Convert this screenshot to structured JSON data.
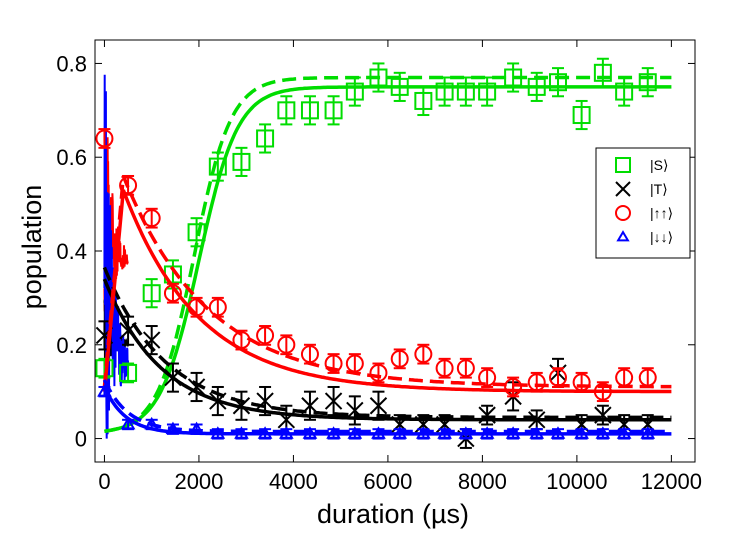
{
  "chart_data": {
    "type": "scatter",
    "title": "",
    "xlabel": "duration (µs)",
    "ylabel": "population",
    "xlim": [
      -200,
      12500
    ],
    "ylim": [
      -0.05,
      0.85
    ],
    "xticks": [
      0,
      2000,
      4000,
      6000,
      8000,
      10000,
      12000
    ],
    "yticks": [
      0,
      0.2,
      0.4,
      0.6,
      0.8
    ],
    "xtick_labels": [
      "0",
      "2000",
      "4000",
      "6000",
      "8000",
      "10000",
      "12000"
    ],
    "ytick_labels": [
      "0",
      "0.2",
      "0.4",
      "0.6",
      "0.8"
    ],
    "legend_position": "right",
    "series": [
      {
        "name": "|S⟩",
        "color": "#00dd00",
        "marker": "square",
        "x": [
          0,
          500,
          1000,
          1450,
          1950,
          2400,
          2900,
          3400,
          3850,
          4350,
          4850,
          5300,
          5800,
          6250,
          6750,
          7200,
          7650,
          8100,
          8650,
          9150,
          9600,
          10100,
          10550,
          11000,
          11500
        ],
        "y": [
          0.15,
          0.14,
          0.31,
          0.35,
          0.44,
          0.58,
          0.59,
          0.64,
          0.7,
          0.7,
          0.7,
          0.74,
          0.77,
          0.75,
          0.72,
          0.74,
          0.74,
          0.74,
          0.77,
          0.75,
          0.76,
          0.69,
          0.78,
          0.74,
          0.76
        ],
        "err": [
          0.02,
          0.02,
          0.03,
          0.03,
          0.03,
          0.03,
          0.03,
          0.03,
          0.03,
          0.03,
          0.03,
          0.03,
          0.03,
          0.03,
          0.03,
          0.03,
          0.03,
          0.03,
          0.03,
          0.03,
          0.03,
          0.03,
          0.03,
          0.03,
          0.03
        ],
        "fit_solid": {
          "a": 0.01,
          "b": 0.75,
          "t0": 2000,
          "w": 900,
          "mode": "logistic"
        },
        "fit_dashed": {
          "a": 0.01,
          "b": 0.77,
          "t0": 1900,
          "w": 850,
          "mode": "logistic"
        }
      },
      {
        "name": "|T⟩",
        "color": "#000000",
        "marker": "x",
        "x": [
          0,
          500,
          1000,
          1450,
          1950,
          2400,
          2900,
          3400,
          3850,
          4350,
          4850,
          5300,
          5800,
          6250,
          6750,
          7200,
          7650,
          8100,
          8650,
          9150,
          9600,
          10100,
          10550,
          11000,
          11500
        ],
        "y": [
          0.22,
          0.23,
          0.21,
          0.13,
          0.11,
          0.08,
          0.07,
          0.08,
          0.04,
          0.07,
          0.08,
          0.06,
          0.07,
          0.03,
          0.03,
          0.03,
          0.0,
          0.05,
          0.09,
          0.04,
          0.14,
          0.03,
          0.05,
          0.03,
          0.03
        ],
        "err": [
          0.03,
          0.03,
          0.03,
          0.03,
          0.03,
          0.03,
          0.03,
          0.03,
          0.03,
          0.03,
          0.03,
          0.03,
          0.03,
          0.02,
          0.02,
          0.02,
          0.02,
          0.02,
          0.03,
          0.02,
          0.03,
          0.02,
          0.02,
          0.02,
          0.02
        ],
        "fit_solid": {
          "a": 0.04,
          "b": 0.3,
          "tau": 1200,
          "mode": "decay"
        },
        "fit_dashed": {
          "a": 0.045,
          "b": 0.32,
          "tau": 1300,
          "mode": "decay"
        }
      },
      {
        "name": "|↑↑⟩",
        "color": "#ff0000",
        "marker": "circle",
        "x": [
          0,
          500,
          1000,
          1450,
          1950,
          2400,
          2900,
          3400,
          3850,
          4350,
          4850,
          5300,
          5800,
          6250,
          6750,
          7200,
          7650,
          8100,
          8650,
          9150,
          9600,
          10100,
          10550,
          11000,
          11500
        ],
        "y": [
          0.64,
          0.54,
          0.47,
          0.31,
          0.28,
          0.28,
          0.21,
          0.22,
          0.2,
          0.18,
          0.16,
          0.16,
          0.14,
          0.17,
          0.18,
          0.15,
          0.15,
          0.13,
          0.11,
          0.12,
          0.13,
          0.12,
          0.1,
          0.13,
          0.13
        ],
        "err": [
          0.02,
          0.02,
          0.02,
          0.02,
          0.02,
          0.02,
          0.02,
          0.02,
          0.02,
          0.02,
          0.02,
          0.02,
          0.02,
          0.02,
          0.02,
          0.02,
          0.02,
          0.02,
          0.02,
          0.02,
          0.02,
          0.02,
          0.02,
          0.02,
          0.02
        ],
        "fit_solid": {
          "a": 0.1,
          "b": 0.43,
          "tau": 1600,
          "mode": "decay_from_peak",
          "peak": 400
        },
        "fit_dashed": {
          "a": 0.11,
          "b": 0.45,
          "tau": 1800,
          "mode": "decay_from_peak",
          "peak": 400
        }
      },
      {
        "name": "|↓↓⟩",
        "color": "#0000ff",
        "marker": "triangle",
        "x": [
          0,
          500,
          1000,
          1450,
          1950,
          2400,
          2900,
          3400,
          3850,
          4350,
          4850,
          5300,
          5800,
          6250,
          6750,
          7200,
          7650,
          8100,
          8650,
          9150,
          9600,
          10100,
          10550,
          11000,
          11500
        ],
        "y": [
          0.1,
          0.03,
          0.03,
          0.02,
          0.02,
          0.01,
          0.01,
          0.01,
          0.01,
          0.01,
          0.01,
          0.01,
          0.01,
          0.01,
          0.01,
          0.01,
          0.01,
          0.01,
          0.01,
          0.01,
          0.01,
          0.01,
          0.01,
          0.01,
          0.01
        ],
        "err": [
          0.01,
          0.01,
          0.01,
          0.01,
          0.01,
          0.01,
          0.01,
          0.01,
          0.01,
          0.01,
          0.01,
          0.01,
          0.01,
          0.01,
          0.01,
          0.01,
          0.01,
          0.01,
          0.01,
          0.01,
          0.01,
          0.01,
          0.01,
          0.01,
          0.01
        ],
        "fit_solid": {
          "a": 0.01,
          "b": 0.1,
          "tau": 450,
          "mode": "decay"
        },
        "fit_dashed": {
          "a": 0.015,
          "b": 0.11,
          "tau": 500,
          "mode": "decay"
        }
      }
    ]
  }
}
